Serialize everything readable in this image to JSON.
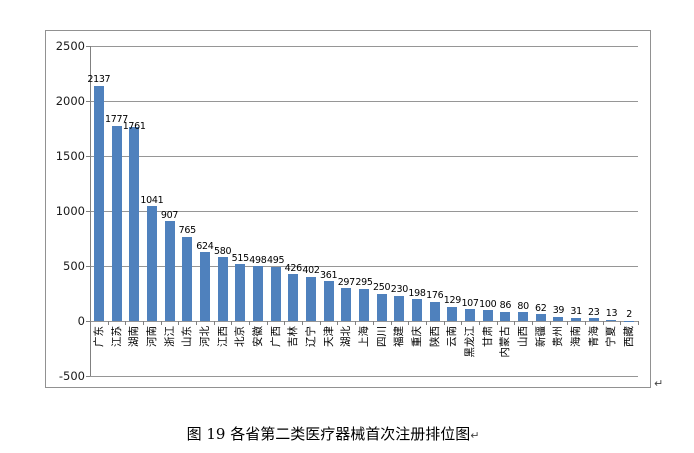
{
  "document": {
    "caption": "图 19  各省第二类医疗器械首次注册排位图",
    "paragraph_mark": "↵"
  },
  "chart_data": {
    "type": "bar",
    "title": "",
    "xlabel": "",
    "ylabel": "",
    "categories": [
      "广东",
      "江苏",
      "湖南",
      "河南",
      "浙江",
      "山东",
      "河北",
      "江西",
      "北京",
      "安徽",
      "广西",
      "吉林",
      "辽宁",
      "天津",
      "湖北",
      "上海",
      "四川",
      "福建",
      "重庆",
      "陕西",
      "云南",
      "黑龙江",
      "甘肃",
      "内蒙古",
      "山西",
      "新疆",
      "贵州",
      "海南",
      "青海",
      "宁夏",
      "西藏"
    ],
    "values": [
      2137,
      1777,
      1761,
      1041,
      907,
      765,
      624,
      580,
      515,
      498,
      495,
      426,
      402,
      361,
      297,
      295,
      250,
      230,
      198,
      176,
      129,
      107,
      100,
      86,
      80,
      62,
      39,
      31,
      23,
      13,
      2
    ],
    "yticks": [
      2500,
      2000,
      1500,
      1000,
      500,
      0,
      -500
    ],
    "ylim": [
      -500,
      2500
    ],
    "grid": true,
    "legend": "none",
    "data_labels": "outside-end",
    "bar_color": "#4F81BD",
    "gridline_color": "#969696",
    "axis_color": "#808080",
    "border_color": "#919191",
    "text_color": "#000000"
  }
}
